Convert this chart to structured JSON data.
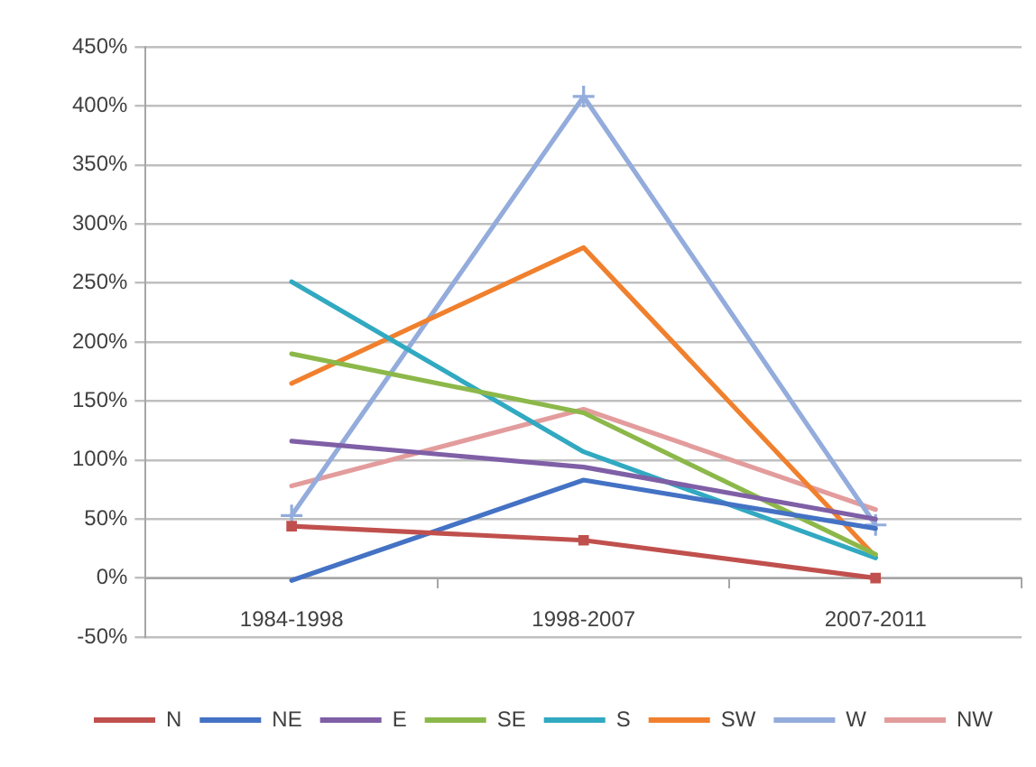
{
  "chart_data": {
    "type": "line",
    "categories": [
      "1984-1998",
      "1998-2007",
      "2007-2011"
    ],
    "series": [
      {
        "name": "N",
        "color": "#c0504d",
        "values": [
          44,
          32,
          0
        ],
        "marker": "square"
      },
      {
        "name": "NE",
        "color": "#4472c4",
        "values": [
          -2,
          83,
          42
        ]
      },
      {
        "name": "E",
        "color": "#7f5fa6",
        "values": [
          116,
          94,
          50
        ]
      },
      {
        "name": "SE",
        "color": "#8cb84a",
        "values": [
          190,
          140,
          20
        ]
      },
      {
        "name": "S",
        "color": "#31a9c1",
        "values": [
          251,
          107,
          17
        ]
      },
      {
        "name": "SW",
        "color": "#f0802e",
        "values": [
          165,
          280,
          18
        ]
      },
      {
        "name": "W",
        "color": "#93acdc",
        "values": [
          53,
          408,
          45
        ],
        "marker": "cross"
      },
      {
        "name": "NW",
        "color": "#e39c9c",
        "values": [
          78,
          143,
          58
        ]
      }
    ],
    "ylim": [
      -50,
      450
    ],
    "yticks": [
      {
        "value": -50,
        "label": "-50%"
      },
      {
        "value": 0,
        "label": "0%"
      },
      {
        "value": 50,
        "label": "50%"
      },
      {
        "value": 100,
        "label": "100%"
      },
      {
        "value": 150,
        "label": "150%"
      },
      {
        "value": 200,
        "label": "200%"
      },
      {
        "value": 250,
        "label": "250%"
      },
      {
        "value": 300,
        "label": "300%"
      },
      {
        "value": 350,
        "label": "350%"
      },
      {
        "value": 400,
        "label": "400%"
      },
      {
        "value": 450,
        "label": "450%"
      }
    ],
    "grid": "y",
    "legend": "bottom",
    "marker": "none",
    "line_style": "solid"
  }
}
